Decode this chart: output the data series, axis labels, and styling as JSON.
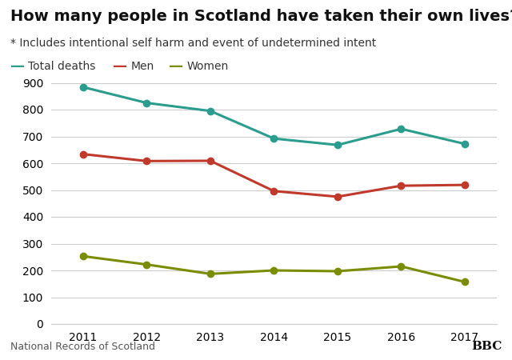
{
  "title": "How many people in Scotland have taken their own lives?",
  "subtitle": "* Includes intentional self harm and event of undetermined intent",
  "source": "National Records of Scotland",
  "years": [
    2011,
    2012,
    2013,
    2014,
    2015,
    2016,
    2017
  ],
  "total_deaths": [
    884,
    825,
    795,
    692,
    668,
    728,
    672
  ],
  "men": [
    634,
    608,
    609,
    496,
    475,
    516,
    519
  ],
  "women": [
    253,
    222,
    187,
    200,
    197,
    215,
    157
  ],
  "color_total": "#2a9d8f",
  "color_men": "#c0392b",
  "color_women": "#7a8c00",
  "ylim": [
    0,
    900
  ],
  "yticks": [
    0,
    100,
    200,
    300,
    400,
    500,
    600,
    700,
    800,
    900
  ],
  "background_color": "#ffffff",
  "title_fontsize": 14,
  "subtitle_fontsize": 10,
  "legend_fontsize": 10,
  "axis_fontsize": 10,
  "source_fontsize": 9,
  "bbc_fontsize": 11,
  "linewidth": 2.2,
  "markersize": 6
}
